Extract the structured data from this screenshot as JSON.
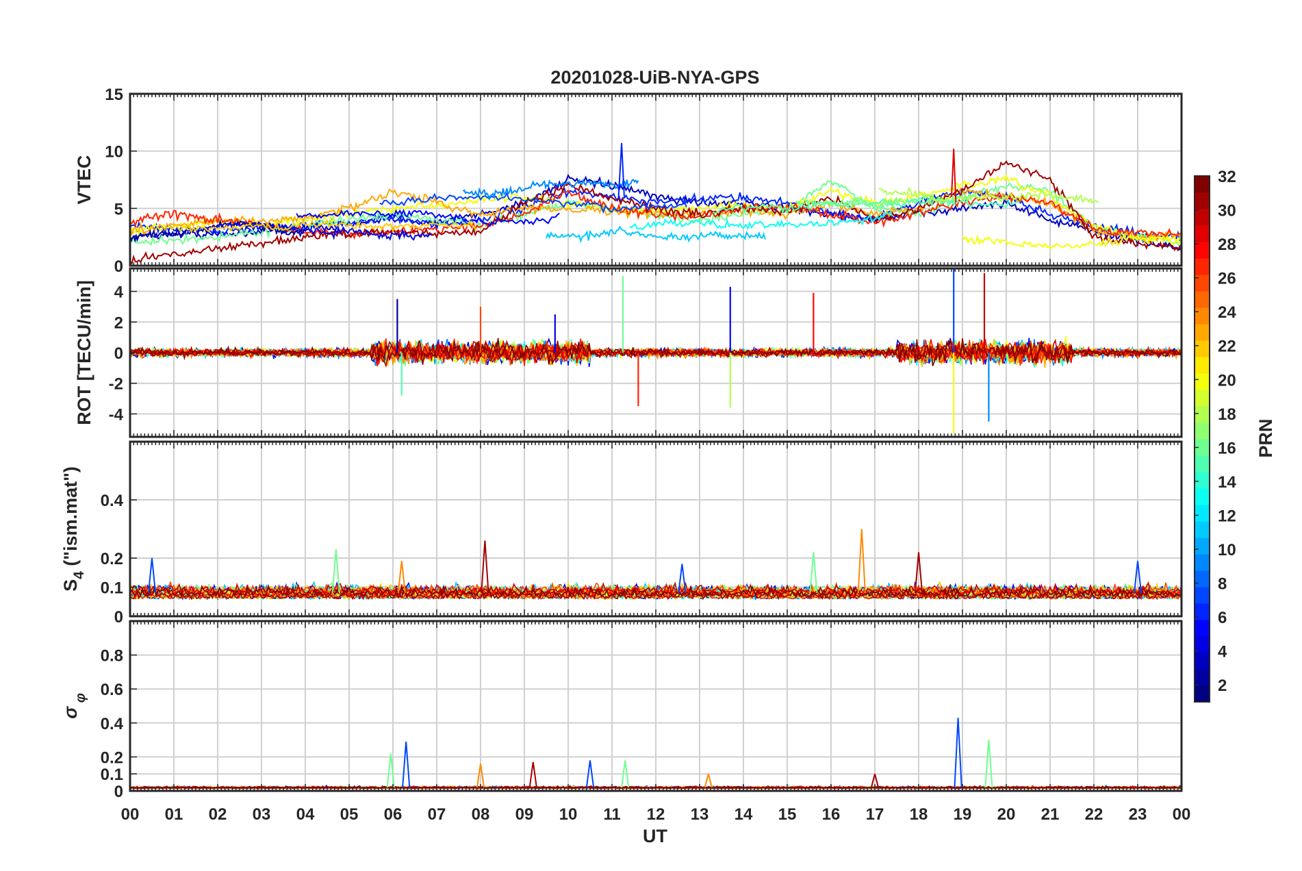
{
  "title": "20201028-UiB-NYA-GPS",
  "xlabel": "UT",
  "x_ticks": [
    "00",
    "01",
    "02",
    "03",
    "04",
    "05",
    "06",
    "07",
    "08",
    "09",
    "10",
    "11",
    "12",
    "13",
    "14",
    "15",
    "16",
    "17",
    "18",
    "19",
    "20",
    "21",
    "22",
    "23",
    "00"
  ],
  "colorbar": {
    "label": "PRN",
    "range": [
      1,
      32
    ],
    "ticks": [
      "2",
      "4",
      "6",
      "8",
      "10",
      "12",
      "14",
      "16",
      "18",
      "20",
      "22",
      "24",
      "26",
      "28",
      "30",
      "32"
    ],
    "colormap": "jet"
  },
  "chart_data": [
    {
      "type": "line",
      "id": "vtec",
      "ylabel": "VTEC",
      "ylim": [
        0,
        15
      ],
      "yticks": [
        "0",
        "5",
        "10",
        "15"
      ],
      "xlim": [
        0,
        24
      ],
      "note_series": "one line per GPS PRN (1-32), colored by PRN",
      "series": [
        {
          "prn": 3,
          "x": [
            0,
            1,
            2,
            3,
            4,
            5,
            6,
            7,
            8,
            9,
            10,
            11,
            12,
            13,
            14,
            15,
            16,
            17,
            18,
            19,
            20,
            21,
            22,
            23,
            24
          ],
          "y": [
            2.5,
            2.8,
            2.7,
            3.0,
            3.2,
            3.6,
            4.0,
            3.8,
            4.5,
            5.5,
            7.5,
            7.0,
            6.0,
            5.5,
            5.5,
            5.0,
            4.5,
            4.0,
            4.5,
            5.0,
            5.5,
            4.0,
            3.0,
            2.2,
            1.5
          ]
        },
        {
          "prn": 6,
          "x": [
            0,
            1,
            2,
            3,
            4,
            5,
            6,
            7,
            8,
            9,
            10,
            11,
            12,
            13,
            14,
            15,
            16,
            17,
            18,
            19,
            20,
            21,
            22,
            23,
            24
          ],
          "y": [
            3.5,
            3.2,
            3.0,
            3.3,
            3.5,
            3.8,
            4.2,
            3.5,
            4.0,
            5.0,
            6.5,
            6.0,
            5.5,
            5.8,
            6.0,
            5.5,
            4.5,
            4.2,
            5.5,
            6.5,
            6.0,
            4.5,
            3.5,
            2.8,
            2.5
          ]
        },
        {
          "prn": 16,
          "x": [
            0,
            1,
            2,
            3,
            4,
            5,
            6,
            7,
            8,
            9,
            10,
            11,
            12,
            13,
            14,
            15,
            16,
            17,
            18,
            19,
            20,
            21,
            22,
            23,
            24
          ],
          "y": [
            2.0,
            2.2,
            2.5,
            3.0,
            3.5,
            4.0,
            4.5,
            4.0,
            3.5,
            4.5,
            5.5,
            5.0,
            4.5,
            4.0,
            4.5,
            4.8,
            7.5,
            5.0,
            4.5,
            6.0,
            7.0,
            6.5,
            3.5,
            2.5,
            2.0
          ]
        },
        {
          "prn": 20,
          "x": [
            0,
            1,
            2,
            3,
            4,
            5,
            6,
            7,
            8,
            9,
            10,
            11,
            12,
            13,
            14,
            15,
            16,
            17,
            18,
            19,
            20,
            21,
            22,
            23,
            24
          ],
          "y": [
            3.0,
            3.5,
            3.8,
            3.6,
            4.0,
            4.5,
            5.0,
            5.2,
            5.8,
            6.0,
            5.5,
            5.0,
            4.8,
            5.0,
            5.2,
            5.0,
            6.5,
            5.5,
            6.0,
            7.0,
            7.5,
            6.0,
            3.5,
            2.5,
            2.2
          ]
        },
        {
          "prn": 23,
          "x": [
            0,
            1,
            2,
            3,
            4,
            5,
            6,
            7,
            8,
            9,
            10,
            11,
            12,
            13,
            14,
            15,
            16,
            17,
            18,
            19,
            20,
            21,
            22,
            23,
            24
          ],
          "y": [
            3.0,
            3.5,
            4.0,
            3.8,
            4.2,
            5.0,
            6.5,
            5.5,
            4.5,
            5.0,
            5.0,
            4.8,
            4.5,
            4.5,
            4.8,
            4.5,
            5.5,
            4.5,
            5.0,
            6.5,
            6.0,
            5.5,
            3.0,
            2.5,
            2.8
          ]
        },
        {
          "prn": 27,
          "x": [
            0,
            1,
            2,
            3,
            4,
            5,
            6,
            7,
            8,
            9,
            10,
            11,
            12,
            13,
            14,
            15,
            16,
            17,
            18,
            19,
            20,
            21,
            22,
            23,
            24
          ],
          "y": [
            3.8,
            4.5,
            4.0,
            3.5,
            3.0,
            2.8,
            3.0,
            3.2,
            3.5,
            4.5,
            6.5,
            5.0,
            4.5,
            4.2,
            5.0,
            5.2,
            4.5,
            3.8,
            4.5,
            5.5,
            6.0,
            5.5,
            3.2,
            2.8,
            2.7
          ]
        },
        {
          "prn": 31,
          "x": [
            0,
            1,
            2,
            3,
            4,
            5,
            6,
            7,
            8,
            9,
            10,
            11,
            12,
            13,
            14,
            15,
            16,
            17,
            18,
            19,
            20,
            21,
            22,
            23,
            24
          ],
          "y": [
            0.5,
            1.0,
            1.5,
            2.0,
            2.5,
            2.8,
            3.0,
            2.8,
            3.0,
            5.5,
            7.0,
            5.8,
            5.0,
            4.5,
            5.0,
            4.8,
            6.0,
            4.0,
            5.0,
            6.5,
            9.0,
            7.5,
            2.5,
            2.0,
            1.5
          ]
        }
      ]
    },
    {
      "type": "line",
      "id": "rot",
      "ylabel": "ROT [TECU/min]",
      "ylim": [
        -5.5,
        5.5
      ],
      "yticks": [
        "-4",
        "-2",
        "0",
        "2",
        "4"
      ],
      "xlim": [
        0,
        24
      ],
      "spikes": [
        {
          "x": 6.1,
          "y": 3.5
        },
        {
          "x": 6.2,
          "y": -2.8
        },
        {
          "x": 8.0,
          "y": 3.0
        },
        {
          "x": 9.7,
          "y": 2.5
        },
        {
          "x": 11.25,
          "y": 5.0
        },
        {
          "x": 11.6,
          "y": -3.5
        },
        {
          "x": 13.7,
          "y": 4.3
        },
        {
          "x": 13.7,
          "y": -3.6
        },
        {
          "x": 15.6,
          "y": 3.9
        },
        {
          "x": 18.8,
          "y": 5.5
        },
        {
          "x": 18.8,
          "y": -5.3
        },
        {
          "x": 19.5,
          "y": 5.2
        },
        {
          "x": 19.6,
          "y": -4.5
        }
      ]
    },
    {
      "type": "line",
      "id": "s4",
      "ylabel": "S4 (\"ism.mat\")",
      "ylabel_main": "S",
      "ylabel_sub": "4",
      "ylabel_rest": "(\"ism.mat\")",
      "ylim": [
        0,
        0.6
      ],
      "yticks": [
        "0",
        "0.1",
        "0.2",
        "0.4"
      ],
      "xlim": [
        0,
        24
      ],
      "peaks": [
        {
          "x": 0.5,
          "y": 0.2
        },
        {
          "x": 4.7,
          "y": 0.23
        },
        {
          "x": 6.2,
          "y": 0.19
        },
        {
          "x": 8.1,
          "y": 0.26
        },
        {
          "x": 12.6,
          "y": 0.18
        },
        {
          "x": 15.6,
          "y": 0.22
        },
        {
          "x": 16.7,
          "y": 0.3
        },
        {
          "x": 18.0,
          "y": 0.22
        },
        {
          "x": 23.0,
          "y": 0.19
        }
      ]
    },
    {
      "type": "line",
      "id": "sigma_phi",
      "ylabel": "σ_φ",
      "ylim": [
        0,
        1.0
      ],
      "yticks": [
        "0",
        "0.1",
        "0.2",
        "0.4",
        "0.6",
        "0.8"
      ],
      "xlim": [
        0,
        24
      ],
      "peaks": [
        {
          "x": 6.3,
          "y": 0.29
        },
        {
          "x": 5.95,
          "y": 0.22
        },
        {
          "x": 8.0,
          "y": 0.16
        },
        {
          "x": 9.2,
          "y": 0.17
        },
        {
          "x": 10.5,
          "y": 0.18
        },
        {
          "x": 11.3,
          "y": 0.18
        },
        {
          "x": 13.2,
          "y": 0.1
        },
        {
          "x": 17.0,
          "y": 0.1
        },
        {
          "x": 18.9,
          "y": 0.43
        },
        {
          "x": 19.6,
          "y": 0.3
        }
      ]
    }
  ]
}
